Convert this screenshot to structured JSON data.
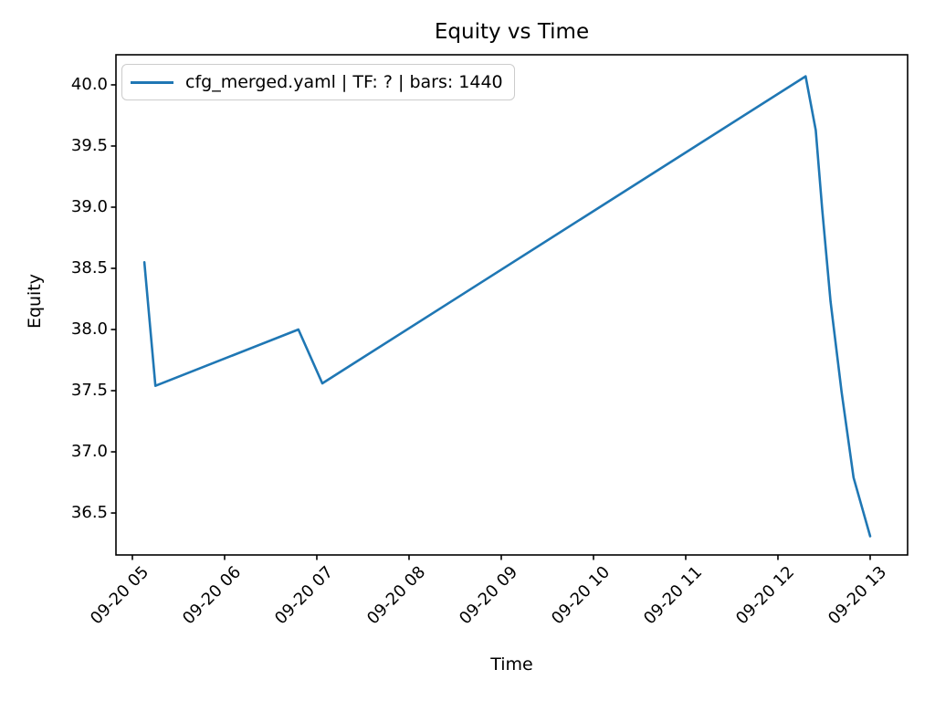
{
  "chart_data": {
    "type": "line",
    "title": "Equity vs Time",
    "xlabel": "Time",
    "ylabel": "Equity",
    "legend_position": "upper left",
    "grid": false,
    "xlim_hours": [
      4.822,
      13.406
    ],
    "ylim": [
      36.157,
      40.246
    ],
    "x_ticks": [
      {
        "label": "09-20 05",
        "hour": 5
      },
      {
        "label": "09-20 06",
        "hour": 6
      },
      {
        "label": "09-20 07",
        "hour": 7
      },
      {
        "label": "09-20 08",
        "hour": 8
      },
      {
        "label": "09-20 09",
        "hour": 9
      },
      {
        "label": "09-20 10",
        "hour": 10
      },
      {
        "label": "09-20 11",
        "hour": 11
      },
      {
        "label": "09-20 12",
        "hour": 12
      },
      {
        "label": "09-20 13",
        "hour": 13
      }
    ],
    "y_ticks": [
      36.5,
      37.0,
      37.5,
      38.0,
      38.5,
      39.0,
      39.5,
      40.0
    ],
    "series": [
      {
        "name": "cfg_merged.yaml | TF: ? | bars: 1440",
        "color": "#1f77b4",
        "points": [
          {
            "time": "09-20 05:08",
            "hour": 5.13,
            "equity": 38.55
          },
          {
            "time": "09-20 05:15",
            "hour": 5.25,
            "equity": 37.54
          },
          {
            "time": "09-20 06:48",
            "hour": 6.8,
            "equity": 38.0
          },
          {
            "time": "09-20 07:04",
            "hour": 7.06,
            "equity": 37.56
          },
          {
            "time": "09-20 12:18",
            "hour": 12.3,
            "equity": 40.07
          },
          {
            "time": "09-20 12:24",
            "hour": 12.41,
            "equity": 39.63
          },
          {
            "time": "09-20 12:29",
            "hour": 12.48,
            "equity": 38.98
          },
          {
            "time": "09-20 12:34",
            "hour": 12.57,
            "equity": 38.23
          },
          {
            "time": "09-20 12:42",
            "hour": 12.69,
            "equity": 37.49
          },
          {
            "time": "09-20 12:49",
            "hour": 12.82,
            "equity": 36.79
          },
          {
            "time": "09-20 13:00",
            "hour": 13.0,
            "equity": 36.31
          }
        ]
      }
    ]
  }
}
